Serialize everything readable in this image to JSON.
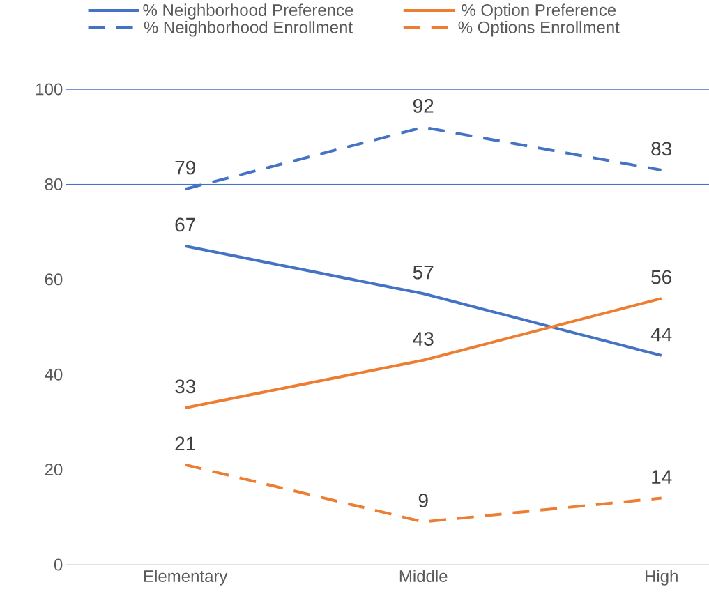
{
  "chart_data": {
    "type": "line",
    "categories": [
      "Elementary",
      "Middle",
      "High"
    ],
    "series": [
      {
        "name": "% Neighborhood Preference",
        "color": "#4472c4",
        "line_style": "solid",
        "values": [
          67,
          57,
          44
        ]
      },
      {
        "name": "% Option Preference",
        "color": "#ed7d31",
        "line_style": "solid",
        "values": [
          33,
          43,
          56
        ]
      },
      {
        "name": "% Neighborhood Enrollment",
        "color": "#4472c4",
        "line_style": "dashed",
        "values": [
          79,
          92,
          83
        ]
      },
      {
        "name": "% Options Enrollment",
        "color": "#ed7d31",
        "line_style": "dashed",
        "values": [
          21,
          9,
          14
        ]
      }
    ],
    "ylim": [
      0,
      100
    ],
    "yticks": [
      0,
      20,
      40,
      60,
      80,
      100
    ],
    "ref_lines": [
      {
        "axis": "y",
        "value": 80,
        "color": "#4472c4"
      },
      {
        "axis": "y",
        "value": 100,
        "color": "#4472c4"
      }
    ],
    "data_labels": true,
    "legend": "top",
    "grid": false
  }
}
